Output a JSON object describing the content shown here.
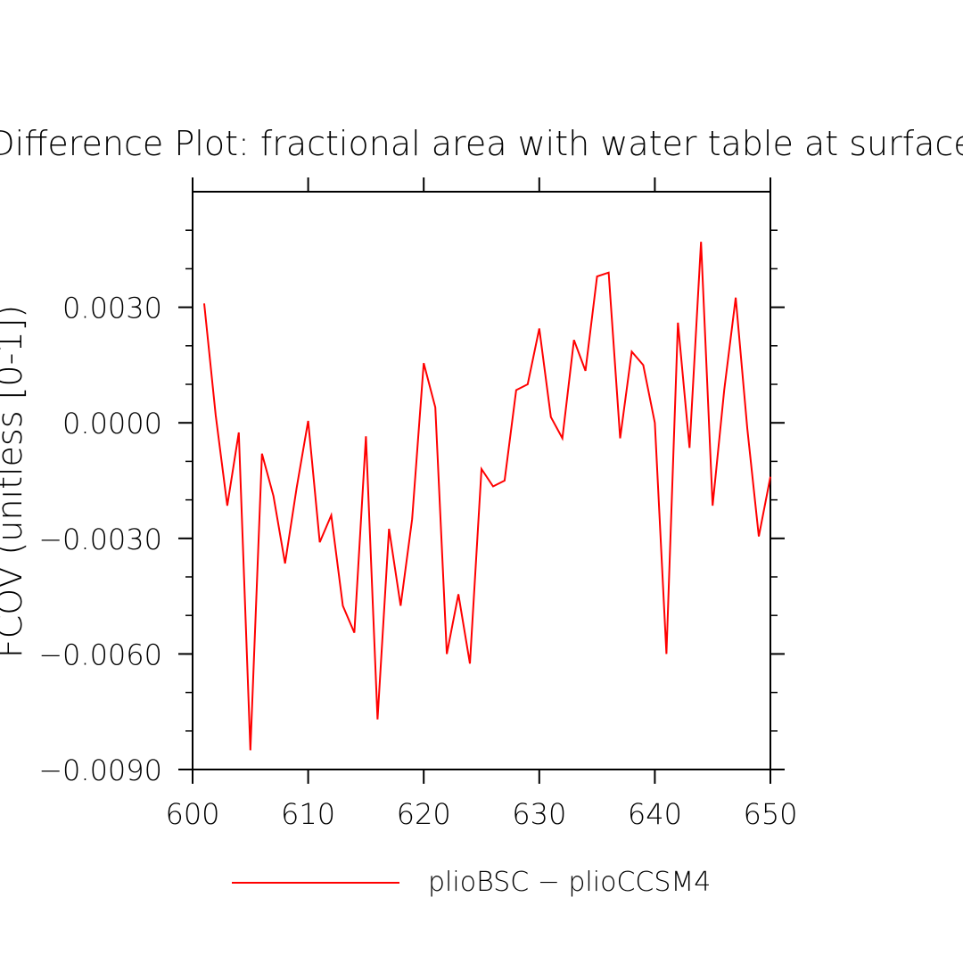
{
  "chart_data": {
    "type": "line",
    "title": "Difference Plot: fractional area with water table at surface",
    "ylabel": "FCOV (unitless [0-1])",
    "xlabel": "",
    "xlim": [
      600,
      650
    ],
    "ylim": [
      -0.009,
      0.006
    ],
    "x_ticks": [
      {
        "value": 600,
        "label": "600"
      },
      {
        "value": 610,
        "label": "610"
      },
      {
        "value": 620,
        "label": "620"
      },
      {
        "value": 630,
        "label": "630"
      },
      {
        "value": 640,
        "label": "640"
      },
      {
        "value": 650,
        "label": "650"
      }
    ],
    "y_ticks": [
      {
        "value": 0.003,
        "label": "0.0030"
      },
      {
        "value": 0.0,
        "label": "0.0000"
      },
      {
        "value": -0.003,
        "label": "−0.0030"
      },
      {
        "value": -0.006,
        "label": "−0.0060"
      },
      {
        "value": -0.009,
        "label": "−0.0090"
      }
    ],
    "series": [
      {
        "name": "plioBSC − plioCCSM4",
        "color": "#ff0000",
        "x": [
          601,
          602,
          603,
          604,
          605,
          606,
          607,
          608,
          609,
          610,
          611,
          612,
          613,
          614,
          615,
          616,
          617,
          618,
          619,
          620,
          621,
          622,
          623,
          624,
          625,
          626,
          627,
          628,
          629,
          630,
          631,
          632,
          633,
          634,
          635,
          636,
          637,
          638,
          639,
          640,
          641,
          642,
          643,
          644,
          645,
          646,
          647,
          648,
          649,
          650
        ],
        "y": [
          0.0031,
          0.0002,
          -0.00215,
          -0.00025,
          -0.0085,
          -0.0008,
          -0.0019,
          -0.00365,
          -0.0017,
          5e-05,
          -0.0031,
          -0.0024,
          -0.00475,
          -0.00545,
          -0.00035,
          -0.0077,
          -0.00275,
          -0.00475,
          -0.0025,
          0.00155,
          0.0004,
          -0.006,
          -0.00445,
          -0.00625,
          -0.0012,
          -0.00165,
          -0.0015,
          0.00085,
          0.001,
          0.00245,
          0.00015,
          -0.0004,
          0.00215,
          0.00135,
          0.0038,
          0.0039,
          -0.0004,
          0.00185,
          0.0015,
          0.0,
          -0.006,
          0.0026,
          -0.00065,
          0.0047,
          -0.00215,
          0.00085,
          0.00325,
          -0.00015,
          -0.00295,
          -0.0014
        ]
      }
    ],
    "legend": {
      "position": "bottom",
      "label": "plioBSC − plioCCSM4"
    },
    "grid": false
  }
}
